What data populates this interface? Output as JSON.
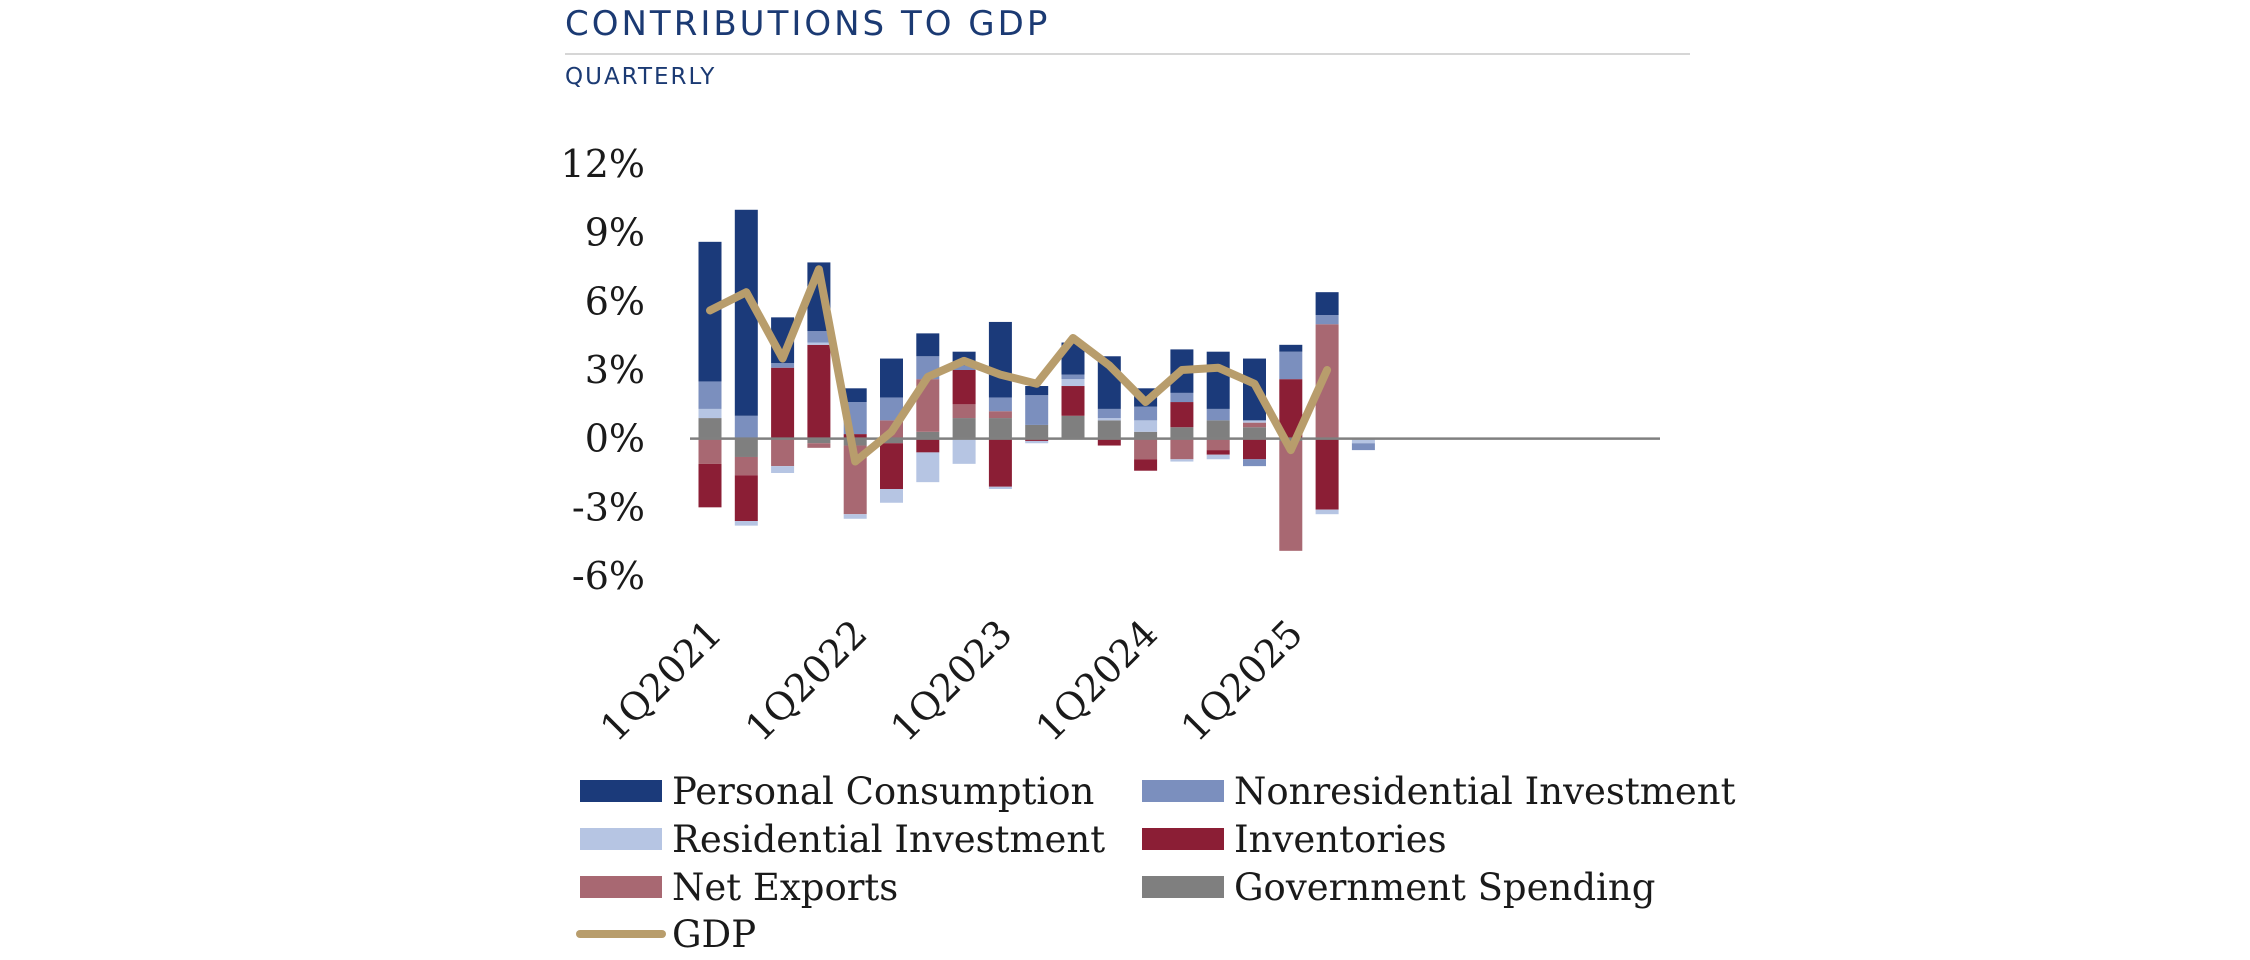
{
  "chart_data": {
    "type": "bar",
    "title": "CONTRIBUTIONS TO GDP",
    "subtitle": "QUARTERLY",
    "ylim": [
      -6,
      12
    ],
    "yticks": [
      12,
      9,
      6,
      3,
      0,
      -3,
      -6
    ],
    "ytick_labels": [
      "12%",
      "9%",
      "6%",
      "3%",
      "0%",
      "-3%",
      "-6%"
    ],
    "categories": [
      "1Q2021",
      "2Q2021",
      "3Q2021",
      "4Q2021",
      "1Q2022",
      "2Q2022",
      "3Q2022",
      "4Q2022",
      "1Q2023",
      "2Q2023",
      "3Q2023",
      "4Q2023",
      "1Q2024",
      "2Q2024",
      "3Q2024",
      "4Q2024",
      "1Q2025",
      "2Q2025",
      "3Q2025"
    ],
    "xtick_labels": [
      "1Q2021",
      "1Q2022",
      "1Q2023",
      "1Q2024",
      "1Q2025"
    ],
    "series": [
      {
        "name": "Personal Consumption",
        "color": "#1b3a7a",
        "values": [
          6.1,
          9.0,
          2.0,
          3.0,
          0.6,
          1.7,
          1.0,
          0.6,
          3.3,
          0.4,
          1.4,
          2.3,
          0.8,
          1.9,
          2.5,
          2.7,
          0.3,
          1.0,
          0.0
        ]
      },
      {
        "name": "Nonresidential Investment",
        "color": "#7b8fbe",
        "values": [
          1.2,
          1.0,
          0.2,
          0.5,
          1.4,
          1.0,
          1.0,
          0.2,
          0.6,
          1.3,
          0.2,
          0.4,
          0.6,
          0.4,
          0.5,
          -0.3,
          1.2,
          0.4,
          -0.3
        ]
      },
      {
        "name": "Residential Investment",
        "color": "#b6c5e3",
        "values": [
          0.4,
          -0.2,
          -0.3,
          0.1,
          -0.2,
          -0.6,
          -1.3,
          -1.1,
          -0.1,
          -0.1,
          0.3,
          0.1,
          0.5,
          -0.1,
          -0.2,
          0.1,
          0.0,
          -0.2,
          -0.2
        ]
      },
      {
        "name": "Inventories",
        "color": "#8b1e35",
        "values": [
          -1.9,
          -2.0,
          3.1,
          4.1,
          0.2,
          -2.0,
          -0.6,
          1.5,
          -2.1,
          -0.1,
          1.3,
          -0.3,
          -0.5,
          1.1,
          -0.2,
          -0.9,
          2.6,
          -3.1,
          0.0
        ]
      },
      {
        "name": "Net Exports",
        "color": "#a86872",
        "values": [
          -1.1,
          -0.8,
          -1.2,
          -0.2,
          -3.0,
          0.8,
          2.3,
          0.6,
          0.3,
          0.0,
          0.0,
          0.0,
          -0.9,
          -0.9,
          -0.5,
          0.2,
          -4.8,
          5.0,
          0.0
        ]
      },
      {
        "name": "Government Spending",
        "color": "#7f7f7f",
        "values": [
          0.9,
          -0.8,
          0.0,
          -0.2,
          -0.3,
          -0.2,
          0.3,
          0.9,
          0.9,
          0.6,
          1.0,
          0.8,
          0.3,
          0.5,
          0.8,
          0.5,
          -0.1,
          0.0,
          0.0
        ]
      }
    ],
    "line_series": {
      "name": "GDP",
      "color": "#b89d6c",
      "values": [
        5.6,
        6.4,
        3.5,
        7.4,
        -1.0,
        0.3,
        2.7,
        3.4,
        2.8,
        2.4,
        4.4,
        3.2,
        1.6,
        3.0,
        3.1,
        2.4,
        -0.5,
        3.0
      ]
    },
    "legend": [
      {
        "name": "Personal Consumption",
        "color": "#1b3a7a",
        "kind": "bar"
      },
      {
        "name": "Nonresidential Investment",
        "color": "#7b8fbe",
        "kind": "bar"
      },
      {
        "name": "Residential Investment",
        "color": "#b6c5e3",
        "kind": "bar"
      },
      {
        "name": "Inventories",
        "color": "#8b1e35",
        "kind": "bar"
      },
      {
        "name": "Net Exports",
        "color": "#a86872",
        "kind": "bar"
      },
      {
        "name": "Government Spending",
        "color": "#7f7f7f",
        "kind": "bar"
      },
      {
        "name": "GDP",
        "color": "#b89d6c",
        "kind": "line"
      }
    ],
    "zero_line_color": "#808080"
  }
}
